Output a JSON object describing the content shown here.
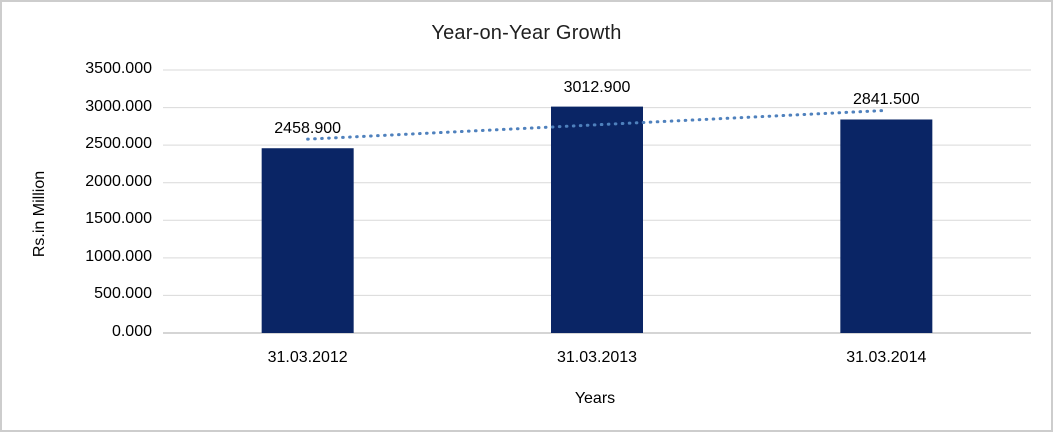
{
  "window": {
    "background_color": "#FFFFFF",
    "border_color": "#CDCDCD"
  },
  "chart_data": {
    "type": "bar",
    "title": "Year-on-Year Growth",
    "xlabel": "Years",
    "ylabel": "Rs.in Million",
    "categories": [
      "31.03.2012",
      "31.03.2013",
      "31.03.2014"
    ],
    "values": [
      2458.9,
      3012.9,
      2841.5
    ],
    "value_labels": [
      "2458.900",
      "3012.900",
      "2841.500"
    ],
    "ylim": [
      0,
      3500
    ],
    "ytick_values": [
      0,
      500,
      1000,
      1500,
      2000,
      2500,
      3000,
      3500
    ],
    "ytick_labels": [
      "0.000",
      "500.000",
      "1000.000",
      "1500.000",
      "2000.000",
      "2500.000",
      "3000.000",
      "3500.000"
    ],
    "grid": "horizontal",
    "legend": "none",
    "bar_color": "#0A2565",
    "gridline_color": "#D9D9D9",
    "axisline_color": "#ABABAB",
    "text_color": "#000000",
    "title_color": "#1F1F1F",
    "trendline": {
      "type": "linear",
      "style": "dotted",
      "color": "#4F81BD",
      "start_value": 2579.8,
      "end_value": 2962.4
    }
  }
}
